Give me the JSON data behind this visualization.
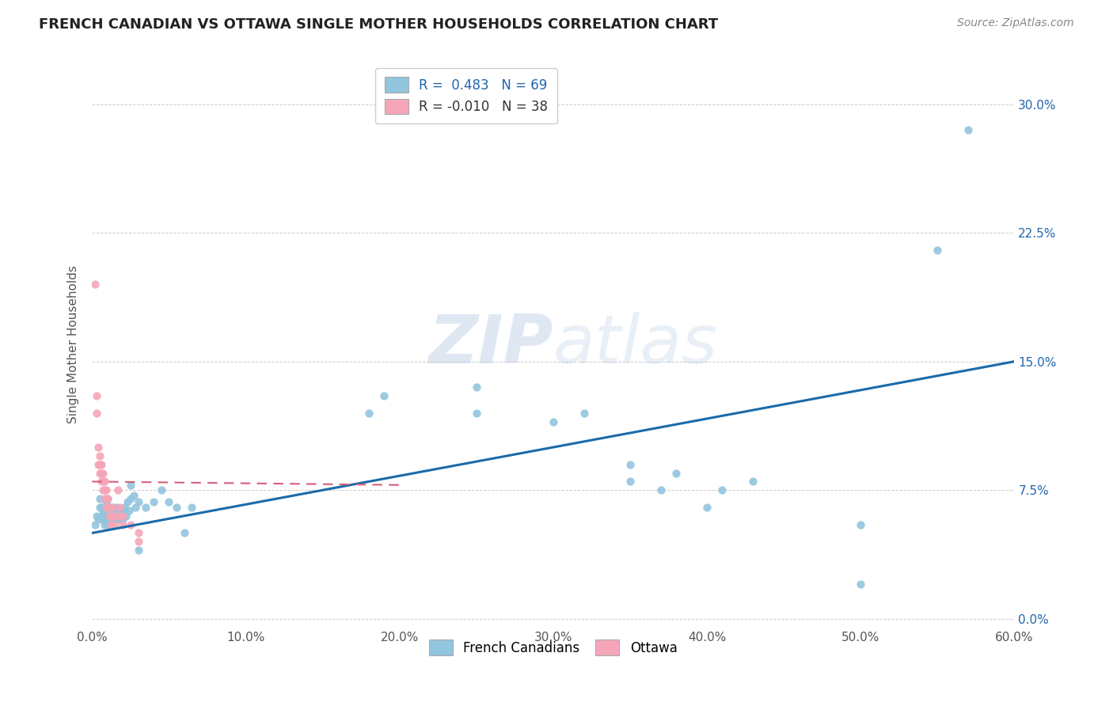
{
  "title": "FRENCH CANADIAN VS OTTAWA SINGLE MOTHER HOUSEHOLDS CORRELATION CHART",
  "source": "Source: ZipAtlas.com",
  "ylabel_label": "Single Mother Households",
  "xlim": [
    0.0,
    0.6
  ],
  "ylim": [
    -0.005,
    0.325
  ],
  "blue_color": "#92c5de",
  "pink_color": "#f4a6b8",
  "blue_line_color": "#1a6bab",
  "pink_line_color": "#d45f7a",
  "watermark_zip": "ZIP",
  "watermark_atlas": "atlas",
  "french_canadians": [
    [
      0.002,
      0.055
    ],
    [
      0.003,
      0.06
    ],
    [
      0.004,
      0.058
    ],
    [
      0.005,
      0.065
    ],
    [
      0.005,
      0.07
    ],
    [
      0.006,
      0.06
    ],
    [
      0.006,
      0.065
    ],
    [
      0.007,
      0.058
    ],
    [
      0.007,
      0.063
    ],
    [
      0.008,
      0.055
    ],
    [
      0.008,
      0.06
    ],
    [
      0.008,
      0.065
    ],
    [
      0.009,
      0.058
    ],
    [
      0.009,
      0.063
    ],
    [
      0.009,
      0.068
    ],
    [
      0.01,
      0.055
    ],
    [
      0.01,
      0.06
    ],
    [
      0.01,
      0.065
    ],
    [
      0.01,
      0.07
    ],
    [
      0.011,
      0.058
    ],
    [
      0.011,
      0.063
    ],
    [
      0.012,
      0.055
    ],
    [
      0.012,
      0.06
    ],
    [
      0.012,
      0.065
    ],
    [
      0.013,
      0.058
    ],
    [
      0.013,
      0.063
    ],
    [
      0.014,
      0.06
    ],
    [
      0.014,
      0.065
    ],
    [
      0.015,
      0.058
    ],
    [
      0.015,
      0.063
    ],
    [
      0.016,
      0.06
    ],
    [
      0.016,
      0.065
    ],
    [
      0.017,
      0.063
    ],
    [
      0.018,
      0.058
    ],
    [
      0.018,
      0.063
    ],
    [
      0.019,
      0.06
    ],
    [
      0.02,
      0.058
    ],
    [
      0.02,
      0.063
    ],
    [
      0.021,
      0.065
    ],
    [
      0.022,
      0.06
    ],
    [
      0.023,
      0.068
    ],
    [
      0.024,
      0.063
    ],
    [
      0.025,
      0.07
    ],
    [
      0.025,
      0.078
    ],
    [
      0.027,
      0.072
    ],
    [
      0.028,
      0.065
    ],
    [
      0.03,
      0.04
    ],
    [
      0.03,
      0.068
    ],
    [
      0.035,
      0.065
    ],
    [
      0.04,
      0.068
    ],
    [
      0.045,
      0.075
    ],
    [
      0.05,
      0.068
    ],
    [
      0.055,
      0.065
    ],
    [
      0.06,
      0.05
    ],
    [
      0.065,
      0.065
    ],
    [
      0.18,
      0.12
    ],
    [
      0.19,
      0.13
    ],
    [
      0.25,
      0.12
    ],
    [
      0.25,
      0.135
    ],
    [
      0.3,
      0.115
    ],
    [
      0.32,
      0.12
    ],
    [
      0.35,
      0.08
    ],
    [
      0.35,
      0.09
    ],
    [
      0.37,
      0.075
    ],
    [
      0.38,
      0.085
    ],
    [
      0.4,
      0.065
    ],
    [
      0.41,
      0.075
    ],
    [
      0.43,
      0.08
    ],
    [
      0.5,
      0.055
    ],
    [
      0.5,
      0.02
    ],
    [
      0.55,
      0.215
    ],
    [
      0.57,
      0.285
    ]
  ],
  "ottawa": [
    [
      0.002,
      0.195
    ],
    [
      0.003,
      0.12
    ],
    [
      0.003,
      0.13
    ],
    [
      0.004,
      0.09
    ],
    [
      0.004,
      0.1
    ],
    [
      0.005,
      0.085
    ],
    [
      0.005,
      0.09
    ],
    [
      0.005,
      0.095
    ],
    [
      0.006,
      0.08
    ],
    [
      0.006,
      0.085
    ],
    [
      0.006,
      0.09
    ],
    [
      0.007,
      0.075
    ],
    [
      0.007,
      0.08
    ],
    [
      0.007,
      0.085
    ],
    [
      0.008,
      0.07
    ],
    [
      0.008,
      0.075
    ],
    [
      0.008,
      0.08
    ],
    [
      0.009,
      0.065
    ],
    [
      0.009,
      0.07
    ],
    [
      0.009,
      0.075
    ],
    [
      0.01,
      0.065
    ],
    [
      0.01,
      0.07
    ],
    [
      0.011,
      0.06
    ],
    [
      0.011,
      0.065
    ],
    [
      0.012,
      0.055
    ],
    [
      0.012,
      0.06
    ],
    [
      0.013,
      0.06
    ],
    [
      0.013,
      0.065
    ],
    [
      0.015,
      0.055
    ],
    [
      0.015,
      0.06
    ],
    [
      0.017,
      0.075
    ],
    [
      0.018,
      0.065
    ],
    [
      0.018,
      0.06
    ],
    [
      0.02,
      0.055
    ],
    [
      0.02,
      0.06
    ],
    [
      0.025,
      0.055
    ],
    [
      0.03,
      0.045
    ],
    [
      0.03,
      0.05
    ]
  ],
  "blue_line_x": [
    0.0,
    0.6
  ],
  "blue_line_y": [
    0.05,
    0.15
  ],
  "pink_line_x": [
    0.0,
    0.2
  ],
  "pink_line_y": [
    0.08,
    0.078
  ]
}
